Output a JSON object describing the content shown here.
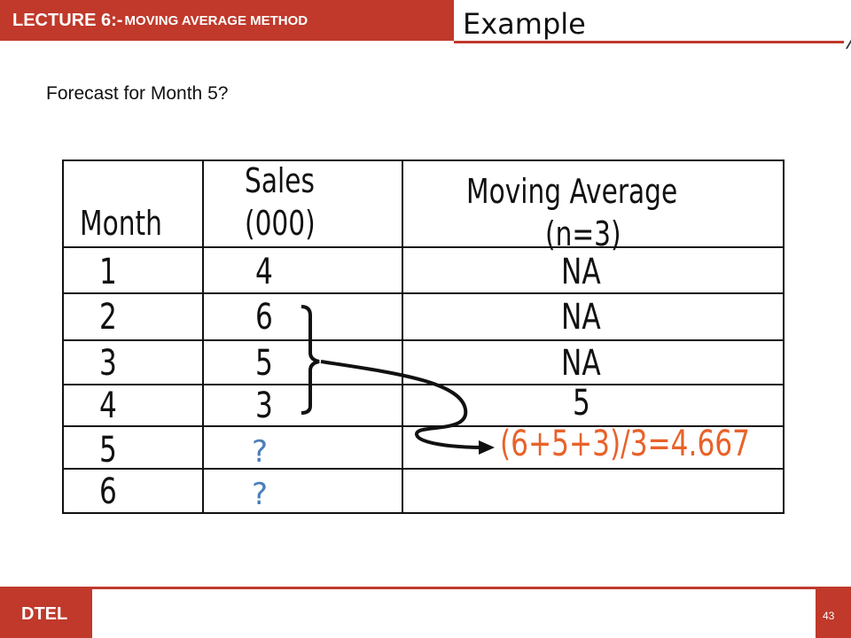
{
  "header": {
    "lecture_label": "LECTURE 6:-",
    "topic_label": "MOVING AVERAGE METHOD",
    "section_title": "Example"
  },
  "question": "Forecast for Month 5?",
  "table": {
    "col_month": "Month",
    "col_sales_line1": "Sales",
    "col_sales_line2": "(000)",
    "col_ma_line1": "Moving Average",
    "col_ma_line2": "(n=3)",
    "rows": [
      {
        "month": "1",
        "sales": "4",
        "ma": "NA"
      },
      {
        "month": "2",
        "sales": "6",
        "ma": "NA"
      },
      {
        "month": "3",
        "sales": "5",
        "ma": "NA"
      },
      {
        "month": "4",
        "sales": "3",
        "ma": "5"
      },
      {
        "month": "5",
        "sales": "?",
        "ma": "(6+5+3)/3=4.667"
      },
      {
        "month": "6",
        "sales": "?",
        "ma": ""
      }
    ]
  },
  "footer": {
    "org_label": "DTEL",
    "page_number": "43"
  },
  "colors": {
    "brand_red": "#c0392b",
    "question_blue": "#4a7ebb",
    "answer_orange": "#e8622a"
  }
}
